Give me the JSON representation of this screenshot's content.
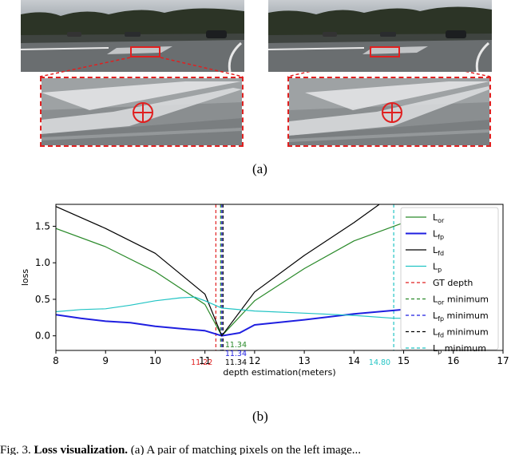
{
  "panel_a": {
    "label": "(a)",
    "colors": {
      "highlight": "#e02020",
      "marker": "#e02020"
    }
  },
  "panel_b": {
    "label": "(b)"
  },
  "caption": {
    "prefix": "Fig. 3.",
    "bold": "Loss visualization.",
    "text": "(a) A pair of matching pixels on the left image..."
  },
  "chart_data": {
    "type": "line",
    "title": "",
    "xlabel": "depth estimation(meters)",
    "ylabel": "loss",
    "xlim": [
      8,
      17
    ],
    "ylim": [
      -0.2,
      1.8
    ],
    "xticks": [
      8,
      9,
      10,
      11,
      12,
      13,
      14,
      15,
      16,
      17
    ],
    "yticks": [
      0.0,
      0.5,
      1.0,
      1.5
    ],
    "ytick_labels": [
      "0.0",
      "0.5",
      "1.0",
      "1.5"
    ],
    "grid": false,
    "legend_position": "right",
    "series": [
      {
        "name": "L_or",
        "legend_main": "L",
        "legend_sub": "or",
        "color": "#2a8a2a",
        "width": 1.2,
        "x": [
          8,
          9,
          10,
          11,
          11.34,
          12,
          13,
          14,
          15
        ],
        "y": [
          1.47,
          1.22,
          0.88,
          0.43,
          0.0,
          0.48,
          0.92,
          1.3,
          1.55
        ]
      },
      {
        "name": "L_fp",
        "legend_main": "L",
        "legend_sub": "fp",
        "color": "#1f1fe0",
        "width": 2,
        "x": [
          8,
          8.5,
          9,
          9.5,
          10,
          10.5,
          11,
          11.34,
          11.7,
          12,
          13,
          14,
          15,
          15.4
        ],
        "y": [
          0.29,
          0.24,
          0.2,
          0.18,
          0.13,
          0.1,
          0.07,
          0.0,
          0.04,
          0.15,
          0.22,
          0.3,
          0.36,
          0.38
        ]
      },
      {
        "name": "L_fd",
        "legend_main": "L",
        "legend_sub": "fd",
        "color": "#000000",
        "width": 1.2,
        "x": [
          8,
          9,
          10,
          11,
          11.34,
          12,
          13,
          14,
          14.55
        ],
        "y": [
          1.77,
          1.47,
          1.13,
          0.57,
          0.0,
          0.6,
          1.1,
          1.55,
          1.82
        ]
      },
      {
        "name": "L_p",
        "legend_main": "L",
        "legend_sub": "p",
        "color": "#22c4c4",
        "width": 1.2,
        "x": [
          8,
          8.5,
          9,
          9.5,
          10,
          10.5,
          10.8,
          11,
          11.34,
          12,
          13,
          14,
          14.8,
          15.2
        ],
        "y": [
          0.33,
          0.36,
          0.37,
          0.42,
          0.48,
          0.52,
          0.53,
          0.48,
          0.38,
          0.34,
          0.31,
          0.28,
          0.24,
          0.24
        ]
      }
    ],
    "vlines": [
      {
        "name": "GT depth",
        "x": 11.22,
        "color": "#e02020",
        "legend": "GT depth"
      },
      {
        "name": "L_or minimum",
        "x": 11.34,
        "color": "#2a8a2a",
        "legend_main": "L",
        "legend_sub": "or",
        "legend_tail": " minimum"
      },
      {
        "name": "L_fp minimum",
        "x": 11.34,
        "color": "#1f1fe0",
        "legend_main": "L",
        "legend_sub": "fp",
        "legend_tail": " minimum"
      },
      {
        "name": "L_fd minimum",
        "x": 11.34,
        "color": "#000000",
        "legend_main": "L",
        "legend_sub": "fd",
        "legend_tail": " minimum"
      },
      {
        "name": "L_p minimum",
        "x": 14.8,
        "color": "#22c4c4",
        "legend_main": "L",
        "legend_sub": "p",
        "legend_tail": " minimum"
      }
    ],
    "annotations": [
      {
        "text": "11.34",
        "x": 11.34,
        "row": 0,
        "color": "#2a8a2a"
      },
      {
        "text": "11.34",
        "x": 11.34,
        "row": 1,
        "color": "#1f1fe0"
      },
      {
        "text": "11.34",
        "x": 11.34,
        "row": 2,
        "color": "#000000"
      },
      {
        "text": "11.22",
        "x": 11.22,
        "row": 2,
        "color": "#e02020",
        "side": "left"
      },
      {
        "text": "14.80",
        "x": 14.8,
        "row": 2,
        "color": "#22c4c4",
        "side": "left"
      }
    ]
  }
}
